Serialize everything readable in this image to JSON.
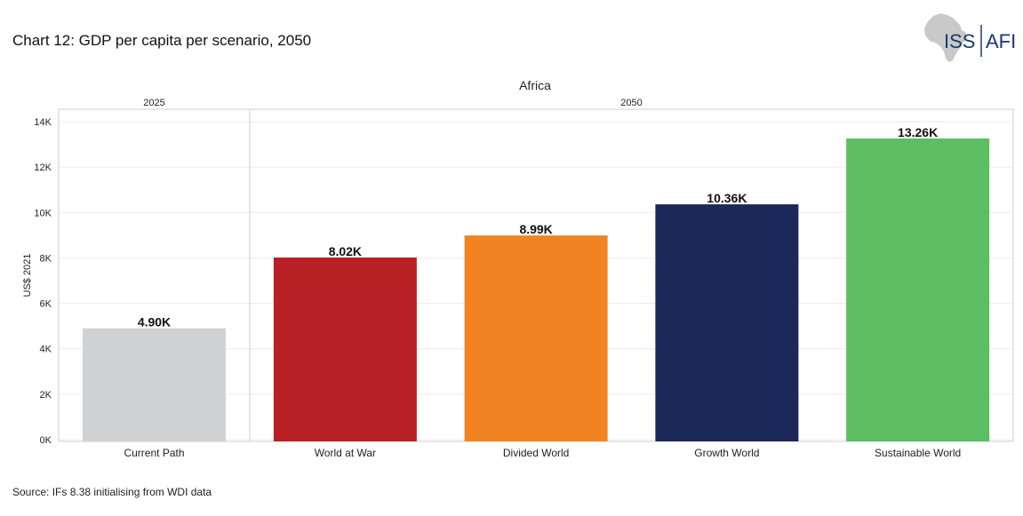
{
  "title": "Chart 12: GDP per capita per scenario, 2050",
  "source": "Source: IFs 8.38 initialising from WDI data",
  "logo": {
    "left_text": "ISS",
    "right_text": "AFI",
    "icon": "africa-map-icon"
  },
  "colors": {
    "current_path": "#d0d1d3",
    "world_at_war": "#b82026",
    "divided_world": "#f28322",
    "growth_world": "#1a285a",
    "sustainable_world": "#5dbd62"
  },
  "chart_data": {
    "type": "bar",
    "facet_title": "Africa",
    "ylabel": "US$ 2021",
    "xlabel": "",
    "ylim": [
      0,
      14000
    ],
    "yticks": [
      0,
      2000,
      4000,
      6000,
      8000,
      10000,
      12000,
      14000
    ],
    "ytick_labels": [
      "0K",
      "2K",
      "4K",
      "6K",
      "8K",
      "10K",
      "12K",
      "14K"
    ],
    "panels": [
      {
        "label": "2025",
        "categories": [
          "Current Path"
        ]
      },
      {
        "label": "2050",
        "categories": [
          "World at War",
          "Divided World",
          "Growth World",
          "Sustainable World"
        ]
      }
    ],
    "categories": [
      "Current Path",
      "World at War",
      "Divided World",
      "Growth World",
      "Sustainable World"
    ],
    "values": [
      4900,
      8020,
      8990,
      10360,
      13260
    ],
    "data_labels": [
      "4.90K",
      "8.02K",
      "8.99K",
      "10.36K",
      "13.26K"
    ],
    "bar_colors": [
      "#d0d1d3",
      "#b82026",
      "#f28322",
      "#1a285a",
      "#5dbd62"
    ],
    "grid": true
  }
}
